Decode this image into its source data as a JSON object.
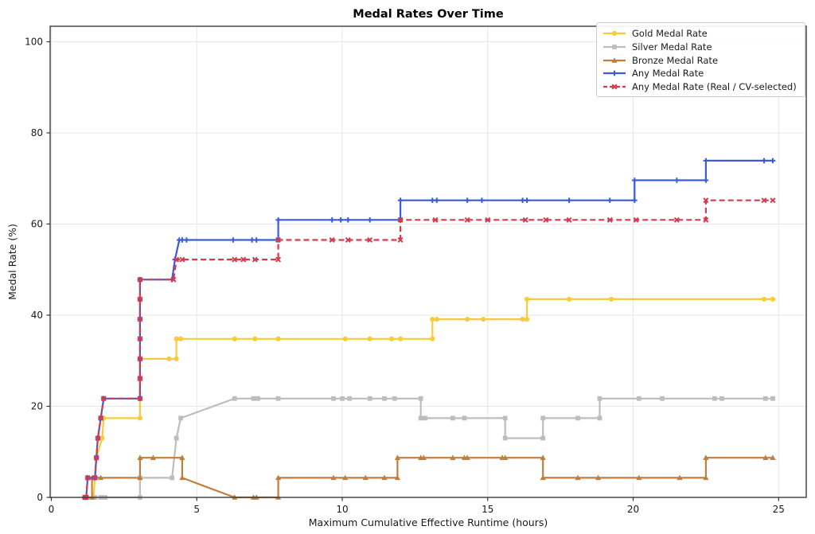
{
  "chart_data": {
    "type": "line",
    "title": "Medal Rates Over Time",
    "xlabel": "Maximum Cumulative Effective Runtime (hours)",
    "ylabel": "Medal Rate (%)",
    "xlim": [
      -0.04,
      25.95
    ],
    "ylim": [
      0,
      103.4
    ],
    "x_ticks": [
      0,
      5,
      10,
      15,
      20,
      25
    ],
    "y_ticks": [
      0,
      20,
      40,
      60,
      80,
      100
    ],
    "grid": true,
    "legend_position": "upper right",
    "series": [
      {
        "name": "Gold Medal Rate",
        "color": "#F8CB3C",
        "marker": "circle",
        "dash": null,
        "points": [
          [
            1.2,
            0
          ],
          [
            1.45,
            0
          ],
          [
            1.5,
            4.3
          ],
          [
            1.55,
            8.7
          ],
          [
            1.75,
            13.0
          ],
          [
            1.8,
            17.4
          ],
          [
            3.05,
            17.4
          ],
          [
            3.05,
            30.4
          ],
          [
            4.05,
            30.4
          ],
          [
            4.3,
            30.4
          ],
          [
            4.3,
            34.8
          ],
          [
            4.45,
            34.8
          ],
          [
            6.3,
            34.8
          ],
          [
            7.0,
            34.8
          ],
          [
            7.8,
            34.8
          ],
          [
            10.1,
            34.8
          ],
          [
            10.95,
            34.8
          ],
          [
            11.7,
            34.8
          ],
          [
            12.0,
            34.8
          ],
          [
            13.1,
            34.8
          ],
          [
            13.1,
            39.1
          ],
          [
            13.25,
            39.1
          ],
          [
            14.3,
            39.1
          ],
          [
            14.85,
            39.1
          ],
          [
            16.2,
            39.1
          ],
          [
            16.35,
            39.1
          ],
          [
            16.35,
            43.5
          ],
          [
            17.8,
            43.5
          ],
          [
            19.25,
            43.5
          ],
          [
            24.5,
            43.5
          ],
          [
            24.8,
            43.5
          ]
        ]
      },
      {
        "name": "Silver Medal Rate",
        "color": "#BDBDBD",
        "marker": "square",
        "dash": null,
        "points": [
          [
            1.2,
            0
          ],
          [
            1.5,
            0
          ],
          [
            1.7,
            0
          ],
          [
            1.85,
            0
          ],
          [
            3.05,
            0
          ],
          [
            3.05,
            4.3
          ],
          [
            4.15,
            4.3
          ],
          [
            4.3,
            13.0
          ],
          [
            4.45,
            17.4
          ],
          [
            6.3,
            21.7
          ],
          [
            6.95,
            21.7
          ],
          [
            7.1,
            21.7
          ],
          [
            7.8,
            21.7
          ],
          [
            9.7,
            21.7
          ],
          [
            10.0,
            21.7
          ],
          [
            10.25,
            21.7
          ],
          [
            10.95,
            21.7
          ],
          [
            11.45,
            21.7
          ],
          [
            11.8,
            21.7
          ],
          [
            12.7,
            21.7
          ],
          [
            12.7,
            17.4
          ],
          [
            12.85,
            17.4
          ],
          [
            13.8,
            17.4
          ],
          [
            14.2,
            17.4
          ],
          [
            15.6,
            17.4
          ],
          [
            15.6,
            13.0
          ],
          [
            16.9,
            13.0
          ],
          [
            16.9,
            17.4
          ],
          [
            18.1,
            17.4
          ],
          [
            18.85,
            17.4
          ],
          [
            18.85,
            21.7
          ],
          [
            20.2,
            21.7
          ],
          [
            21.0,
            21.7
          ],
          [
            22.8,
            21.7
          ],
          [
            23.05,
            21.7
          ],
          [
            24.55,
            21.7
          ],
          [
            24.8,
            21.7
          ]
        ]
      },
      {
        "name": "Bronze Medal Rate",
        "color": "#C07F3F",
        "marker": "triangle",
        "dash": null,
        "points": [
          [
            1.2,
            0
          ],
          [
            1.4,
            0
          ],
          [
            1.4,
            4.3
          ],
          [
            1.7,
            4.3
          ],
          [
            3.05,
            4.3
          ],
          [
            3.05,
            8.7
          ],
          [
            3.5,
            8.7
          ],
          [
            4.5,
            8.7
          ],
          [
            4.5,
            4.3
          ],
          [
            6.3,
            0
          ],
          [
            6.95,
            0
          ],
          [
            7.05,
            0
          ],
          [
            7.8,
            0
          ],
          [
            7.8,
            4.3
          ],
          [
            9.7,
            4.3
          ],
          [
            10.1,
            4.3
          ],
          [
            10.8,
            4.3
          ],
          [
            11.45,
            4.3
          ],
          [
            11.9,
            4.3
          ],
          [
            11.9,
            8.7
          ],
          [
            12.7,
            8.7
          ],
          [
            12.8,
            8.7
          ],
          [
            13.8,
            8.7
          ],
          [
            14.2,
            8.7
          ],
          [
            14.3,
            8.7
          ],
          [
            15.5,
            8.7
          ],
          [
            15.6,
            8.7
          ],
          [
            16.9,
            8.7
          ],
          [
            16.9,
            4.3
          ],
          [
            18.1,
            4.3
          ],
          [
            18.8,
            4.3
          ],
          [
            20.2,
            4.3
          ],
          [
            21.6,
            4.3
          ],
          [
            22.5,
            4.3
          ],
          [
            22.5,
            8.7
          ],
          [
            24.55,
            8.7
          ],
          [
            24.8,
            8.7
          ]
        ]
      },
      {
        "name": "Any Medal Rate",
        "color": "#3A5CDB",
        "marker": "plus",
        "dash": null,
        "points": [
          [
            1.15,
            0
          ],
          [
            1.2,
            0
          ],
          [
            1.25,
            4.3
          ],
          [
            1.5,
            4.3
          ],
          [
            1.55,
            8.7
          ],
          [
            1.6,
            13.0
          ],
          [
            1.7,
            17.4
          ],
          [
            1.8,
            21.7
          ],
          [
            3.05,
            21.7
          ],
          [
            3.05,
            26.1
          ],
          [
            3.05,
            30.4
          ],
          [
            3.05,
            34.8
          ],
          [
            3.05,
            39.1
          ],
          [
            3.05,
            43.5
          ],
          [
            3.05,
            47.8
          ],
          [
            4.15,
            47.8
          ],
          [
            4.25,
            52.2
          ],
          [
            4.4,
            56.5
          ],
          [
            4.5,
            56.5
          ],
          [
            4.65,
            56.5
          ],
          [
            6.25,
            56.5
          ],
          [
            6.9,
            56.5
          ],
          [
            7.05,
            56.5
          ],
          [
            7.8,
            56.5
          ],
          [
            7.8,
            60.9
          ],
          [
            9.65,
            60.9
          ],
          [
            9.95,
            60.9
          ],
          [
            10.2,
            60.9
          ],
          [
            10.95,
            60.9
          ],
          [
            12.0,
            60.9
          ],
          [
            12.0,
            65.2
          ],
          [
            13.1,
            65.2
          ],
          [
            13.25,
            65.2
          ],
          [
            14.3,
            65.2
          ],
          [
            14.8,
            65.2
          ],
          [
            16.2,
            65.2
          ],
          [
            16.35,
            65.2
          ],
          [
            17.8,
            65.2
          ],
          [
            19.2,
            65.2
          ],
          [
            20.05,
            65.2
          ],
          [
            20.05,
            69.6
          ],
          [
            21.5,
            69.6
          ],
          [
            22.5,
            69.6
          ],
          [
            22.5,
            73.9
          ],
          [
            24.5,
            73.9
          ],
          [
            24.8,
            73.9
          ]
        ]
      },
      {
        "name": "Any Medal Rate (Real / CV-selected)",
        "color": "#D63A4E",
        "marker": "x",
        "dash": [
          7,
          4
        ],
        "points": [
          [
            1.15,
            0
          ],
          [
            1.2,
            0
          ],
          [
            1.25,
            4.3
          ],
          [
            1.5,
            4.3
          ],
          [
            1.55,
            8.7
          ],
          [
            1.6,
            13.0
          ],
          [
            1.7,
            17.4
          ],
          [
            1.8,
            21.7
          ],
          [
            3.05,
            21.7
          ],
          [
            3.05,
            26.1
          ],
          [
            3.05,
            30.4
          ],
          [
            3.05,
            34.8
          ],
          [
            3.05,
            39.1
          ],
          [
            3.05,
            43.5
          ],
          [
            3.05,
            47.8
          ],
          [
            4.2,
            47.8
          ],
          [
            4.3,
            52.2
          ],
          [
            4.5,
            52.2
          ],
          [
            6.3,
            52.2
          ],
          [
            6.6,
            52.2
          ],
          [
            7.0,
            52.2
          ],
          [
            7.8,
            52.2
          ],
          [
            7.8,
            56.5
          ],
          [
            9.65,
            56.5
          ],
          [
            10.2,
            56.5
          ],
          [
            10.95,
            56.5
          ],
          [
            12.0,
            56.5
          ],
          [
            12.0,
            60.9
          ],
          [
            13.2,
            60.9
          ],
          [
            14.3,
            60.9
          ],
          [
            15.0,
            60.9
          ],
          [
            16.3,
            60.9
          ],
          [
            17.0,
            60.9
          ],
          [
            17.8,
            60.9
          ],
          [
            19.2,
            60.9
          ],
          [
            20.1,
            60.9
          ],
          [
            21.5,
            60.9
          ],
          [
            22.5,
            60.9
          ],
          [
            22.5,
            65.2
          ],
          [
            24.5,
            65.2
          ],
          [
            24.8,
            65.2
          ]
        ]
      }
    ]
  }
}
